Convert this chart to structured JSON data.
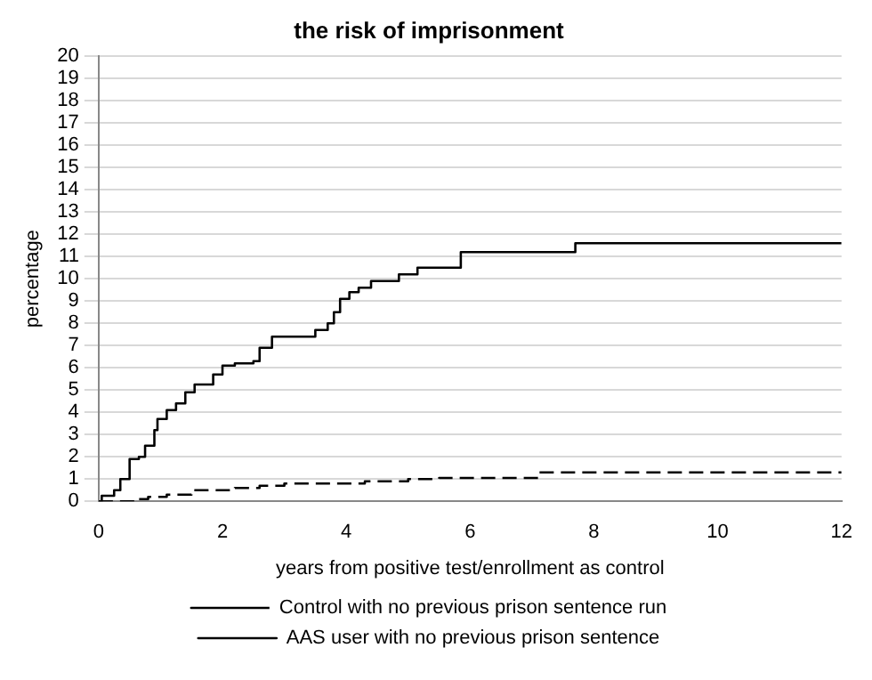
{
  "chart_data": {
    "type": "step",
    "title": "the risk of imprisonment",
    "xlabel": "years from positive test/enrollment as control",
    "ylabel": "percentage",
    "xlim": [
      0,
      12
    ],
    "xticks": [
      0,
      2,
      4,
      6,
      8,
      10,
      12
    ],
    "ylim": [
      0,
      20
    ],
    "yticks": [
      0,
      1,
      2,
      3,
      4,
      5,
      6,
      7,
      8,
      9,
      10,
      11,
      12,
      13,
      14,
      15,
      16,
      17,
      18,
      19,
      20
    ],
    "grid": "y",
    "legend": "bottom",
    "marker": "none",
    "series": [
      {
        "name": "Control with no previous prison sentence run",
        "color": "#000000",
        "line_style": "dashed",
        "x": [
          0,
          0.6,
          0.8,
          1.1,
          1.5,
          2.2,
          2.6,
          3.0,
          4.3,
          5.0,
          5.5,
          7.1,
          12
        ],
        "values": [
          0,
          0.1,
          0.2,
          0.3,
          0.5,
          0.6,
          0.7,
          0.8,
          0.9,
          1.0,
          1.05,
          1.3,
          1.3
        ]
      },
      {
        "name": "AAS user with no previous prison sentence",
        "color": "#000000",
        "line_style": "solid",
        "x": [
          0,
          0.05,
          0.25,
          0.35,
          0.5,
          0.65,
          0.75,
          0.9,
          0.95,
          1.1,
          1.25,
          1.4,
          1.55,
          1.85,
          2.0,
          2.2,
          2.5,
          2.6,
          2.8,
          3.3,
          3.5,
          3.7,
          3.8,
          3.9,
          4.05,
          4.2,
          4.4,
          4.85,
          5.15,
          5.85,
          7.7,
          12
        ],
        "values": [
          0,
          0.25,
          0.5,
          1,
          1.9,
          2.0,
          2.5,
          3.2,
          3.7,
          4.1,
          4.4,
          4.9,
          5.25,
          5.7,
          6.1,
          6.2,
          6.3,
          6.9,
          7.4,
          7.4,
          7.7,
          8.0,
          8.5,
          9.1,
          9.4,
          9.6,
          9.9,
          10.2,
          10.5,
          11.2,
          11.6,
          11.6
        ]
      }
    ]
  }
}
